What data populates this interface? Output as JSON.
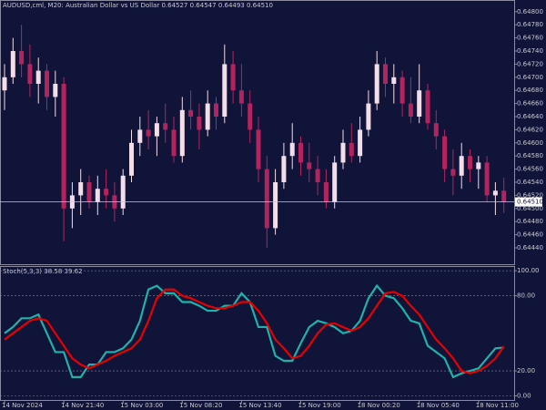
{
  "chart_data": [
    {
      "type": "candlestick",
      "title": "AUDUSD,cml, M20: Australian Dollar vs US Dollar",
      "ohlc_labels": [
        "0.64527",
        "0.64547",
        "0.64493",
        "0.64510"
      ],
      "categories": [
        "14 Nov 2024",
        null,
        null,
        null,
        null,
        null,
        null,
        "14 Nov 21:40",
        null,
        null,
        null,
        null,
        null,
        null,
        "15 Nov 03:00",
        null,
        null,
        null,
        null,
        null,
        null,
        "15 Nov 08:20",
        null,
        null,
        null,
        null,
        null,
        null,
        "15 Nov 13:40",
        null,
        null,
        null,
        null,
        null,
        null,
        "15 Nov 19:00",
        null,
        null,
        null,
        null,
        null,
        null,
        "18 Nov 00:20",
        null,
        null,
        null,
        null,
        null,
        null,
        "18 Nov 05:40",
        null,
        null,
        null,
        null,
        null,
        null,
        "18 Nov 11:00",
        null,
        null,
        null
      ],
      "open": [
        0.6468,
        0.647,
        0.6474,
        0.6472,
        0.6469,
        0.6471,
        0.6467,
        0.6469,
        0.645,
        0.6452,
        0.6454,
        0.6451,
        0.6453,
        0.6452,
        0.645,
        0.6455,
        0.646,
        0.6462,
        0.6461,
        0.6463,
        0.6462,
        0.6458,
        0.6465,
        0.6464,
        0.6462,
        0.6466,
        0.6464,
        0.6472,
        0.6468,
        0.6466,
        0.6462,
        0.6456,
        0.6447,
        0.6454,
        0.6458,
        0.646,
        0.6457,
        0.6456,
        0.6454,
        0.6451,
        0.6457,
        0.646,
        0.6458,
        0.6462,
        0.6466,
        0.6472,
        0.6469,
        0.647,
        0.6466,
        0.6464,
        0.6468,
        0.6463,
        0.6461,
        0.6456,
        0.6455,
        0.6458,
        0.6456,
        0.6457,
        0.6452,
        0.64527
      ],
      "high": [
        0.6472,
        0.6476,
        0.6478,
        0.6475,
        0.6473,
        0.6472,
        0.6471,
        0.647,
        0.6454,
        0.6456,
        0.6455,
        0.6455,
        0.6456,
        0.6454,
        0.6456,
        0.6462,
        0.6464,
        0.6465,
        0.6464,
        0.6466,
        0.6464,
        0.6467,
        0.6468,
        0.6466,
        0.6468,
        0.6467,
        0.6475,
        0.6474,
        0.6472,
        0.6468,
        0.6464,
        0.6458,
        0.6456,
        0.646,
        0.6463,
        0.6461,
        0.646,
        0.6458,
        0.6456,
        0.6458,
        0.6462,
        0.6463,
        0.6464,
        0.6468,
        0.6474,
        0.6473,
        0.6472,
        0.6471,
        0.647,
        0.6472,
        0.6469,
        0.6465,
        0.6462,
        0.6459,
        0.646,
        0.6459,
        0.6458,
        0.6458,
        0.6454,
        0.64547
      ],
      "low": [
        0.6465,
        0.6469,
        0.647,
        0.6467,
        0.6466,
        0.6465,
        0.6464,
        0.6445,
        0.6447,
        0.6449,
        0.645,
        0.6449,
        0.645,
        0.6448,
        0.6449,
        0.6454,
        0.6458,
        0.6459,
        0.6458,
        0.646,
        0.6457,
        0.6457,
        0.6462,
        0.6459,
        0.6461,
        0.6462,
        0.6463,
        0.6466,
        0.6464,
        0.646,
        0.6454,
        0.6444,
        0.6446,
        0.6453,
        0.6456,
        0.6455,
        0.6454,
        0.6452,
        0.645,
        0.645,
        0.6456,
        0.6457,
        0.6457,
        0.6461,
        0.6465,
        0.6467,
        0.6466,
        0.6464,
        0.6463,
        0.6463,
        0.6462,
        0.6459,
        0.6454,
        0.6452,
        0.6453,
        0.6454,
        0.6453,
        0.6451,
        0.6449,
        0.64493
      ],
      "close": [
        0.647,
        0.6474,
        0.6472,
        0.6469,
        0.6471,
        0.6467,
        0.6469,
        0.645,
        0.6452,
        0.6454,
        0.6451,
        0.6453,
        0.6452,
        0.645,
        0.6455,
        0.646,
        0.6462,
        0.6461,
        0.6463,
        0.6462,
        0.6458,
        0.6465,
        0.6464,
        0.6462,
        0.6466,
        0.6464,
        0.6472,
        0.6468,
        0.6466,
        0.6462,
        0.6456,
        0.6447,
        0.6454,
        0.6458,
        0.646,
        0.6457,
        0.6456,
        0.6454,
        0.6451,
        0.6457,
        0.646,
        0.6458,
        0.6462,
        0.6466,
        0.6472,
        0.6469,
        0.647,
        0.6466,
        0.6464,
        0.6468,
        0.6463,
        0.6461,
        0.6456,
        0.6455,
        0.6458,
        0.6456,
        0.6457,
        0.6452,
        0.64527,
        0.6451
      ],
      "up_color": "#f3dde8",
      "down_color": "#b3245f",
      "ylim": [
        0.64415,
        0.64815
      ],
      "yticks": [
        {
          "value": 0.6444,
          "label": "0.64440"
        },
        {
          "value": 0.6446,
          "label": "0.64460"
        },
        {
          "value": 0.6448,
          "label": "0.64480"
        },
        {
          "value": 0.645,
          "label": "0.64500"
        },
        {
          "value": 0.6452,
          "label": "0.64520"
        },
        {
          "value": 0.6454,
          "label": "0.64540"
        },
        {
          "value": 0.6456,
          "label": "0.64560"
        },
        {
          "value": 0.6458,
          "label": "0.64580"
        },
        {
          "value": 0.646,
          "label": "0.64600"
        },
        {
          "value": 0.6462,
          "label": "0.64620"
        },
        {
          "value": 0.6464,
          "label": "0.64640"
        },
        {
          "value": 0.6466,
          "label": "0.64660"
        },
        {
          "value": 0.6468,
          "label": "0.64680"
        },
        {
          "value": 0.647,
          "label": "0.64700"
        },
        {
          "value": 0.6472,
          "label": "0.64720"
        },
        {
          "value": 0.6474,
          "label": "0.64740"
        },
        {
          "value": 0.6476,
          "label": "0.64760"
        },
        {
          "value": 0.6478,
          "label": "0.64780"
        },
        {
          "value": 0.648,
          "label": "0.64800"
        }
      ],
      "grid": false
    },
    {
      "type": "line",
      "title": "Stoch(5,3,3)",
      "series": [
        {
          "color": "#20b2aa",
          "values": [
            50,
            55,
            62,
            62,
            65,
            50,
            35,
            35,
            15,
            15,
            25,
            25,
            35,
            35,
            38,
            45,
            60,
            85,
            88,
            82,
            82,
            75,
            75,
            72,
            68,
            68,
            72,
            72,
            82,
            75,
            55,
            55,
            32,
            28,
            28,
            42,
            55,
            60,
            58,
            55,
            50,
            52,
            60,
            78,
            88,
            80,
            78,
            70,
            60,
            58,
            40,
            35,
            30,
            15,
            18,
            20,
            22,
            30,
            38,
            38.58
          ]
        },
        {
          "color": "#e60000",
          "values": [
            45,
            50,
            55,
            60,
            62,
            60,
            50,
            40,
            30,
            25,
            22,
            25,
            28,
            32,
            35,
            38,
            45,
            60,
            78,
            85,
            85,
            80,
            78,
            75,
            72,
            70,
            70,
            72,
            75,
            75,
            68,
            58,
            45,
            38,
            30,
            32,
            40,
            50,
            57,
            58,
            55,
            52,
            55,
            62,
            72,
            82,
            83,
            80,
            72,
            65,
            55,
            45,
            38,
            30,
            20,
            18,
            20,
            24,
            30,
            39.62
          ]
        }
      ],
      "ylim": [
        -4,
        103
      ],
      "yticks": [
        {
          "value": 0,
          "label": "0.00"
        },
        {
          "value": 20,
          "label": "20.00"
        },
        {
          "value": 80,
          "label": "80.00"
        },
        {
          "value": 100,
          "label": "100.00"
        }
      ],
      "grid": true
    }
  ]
}
